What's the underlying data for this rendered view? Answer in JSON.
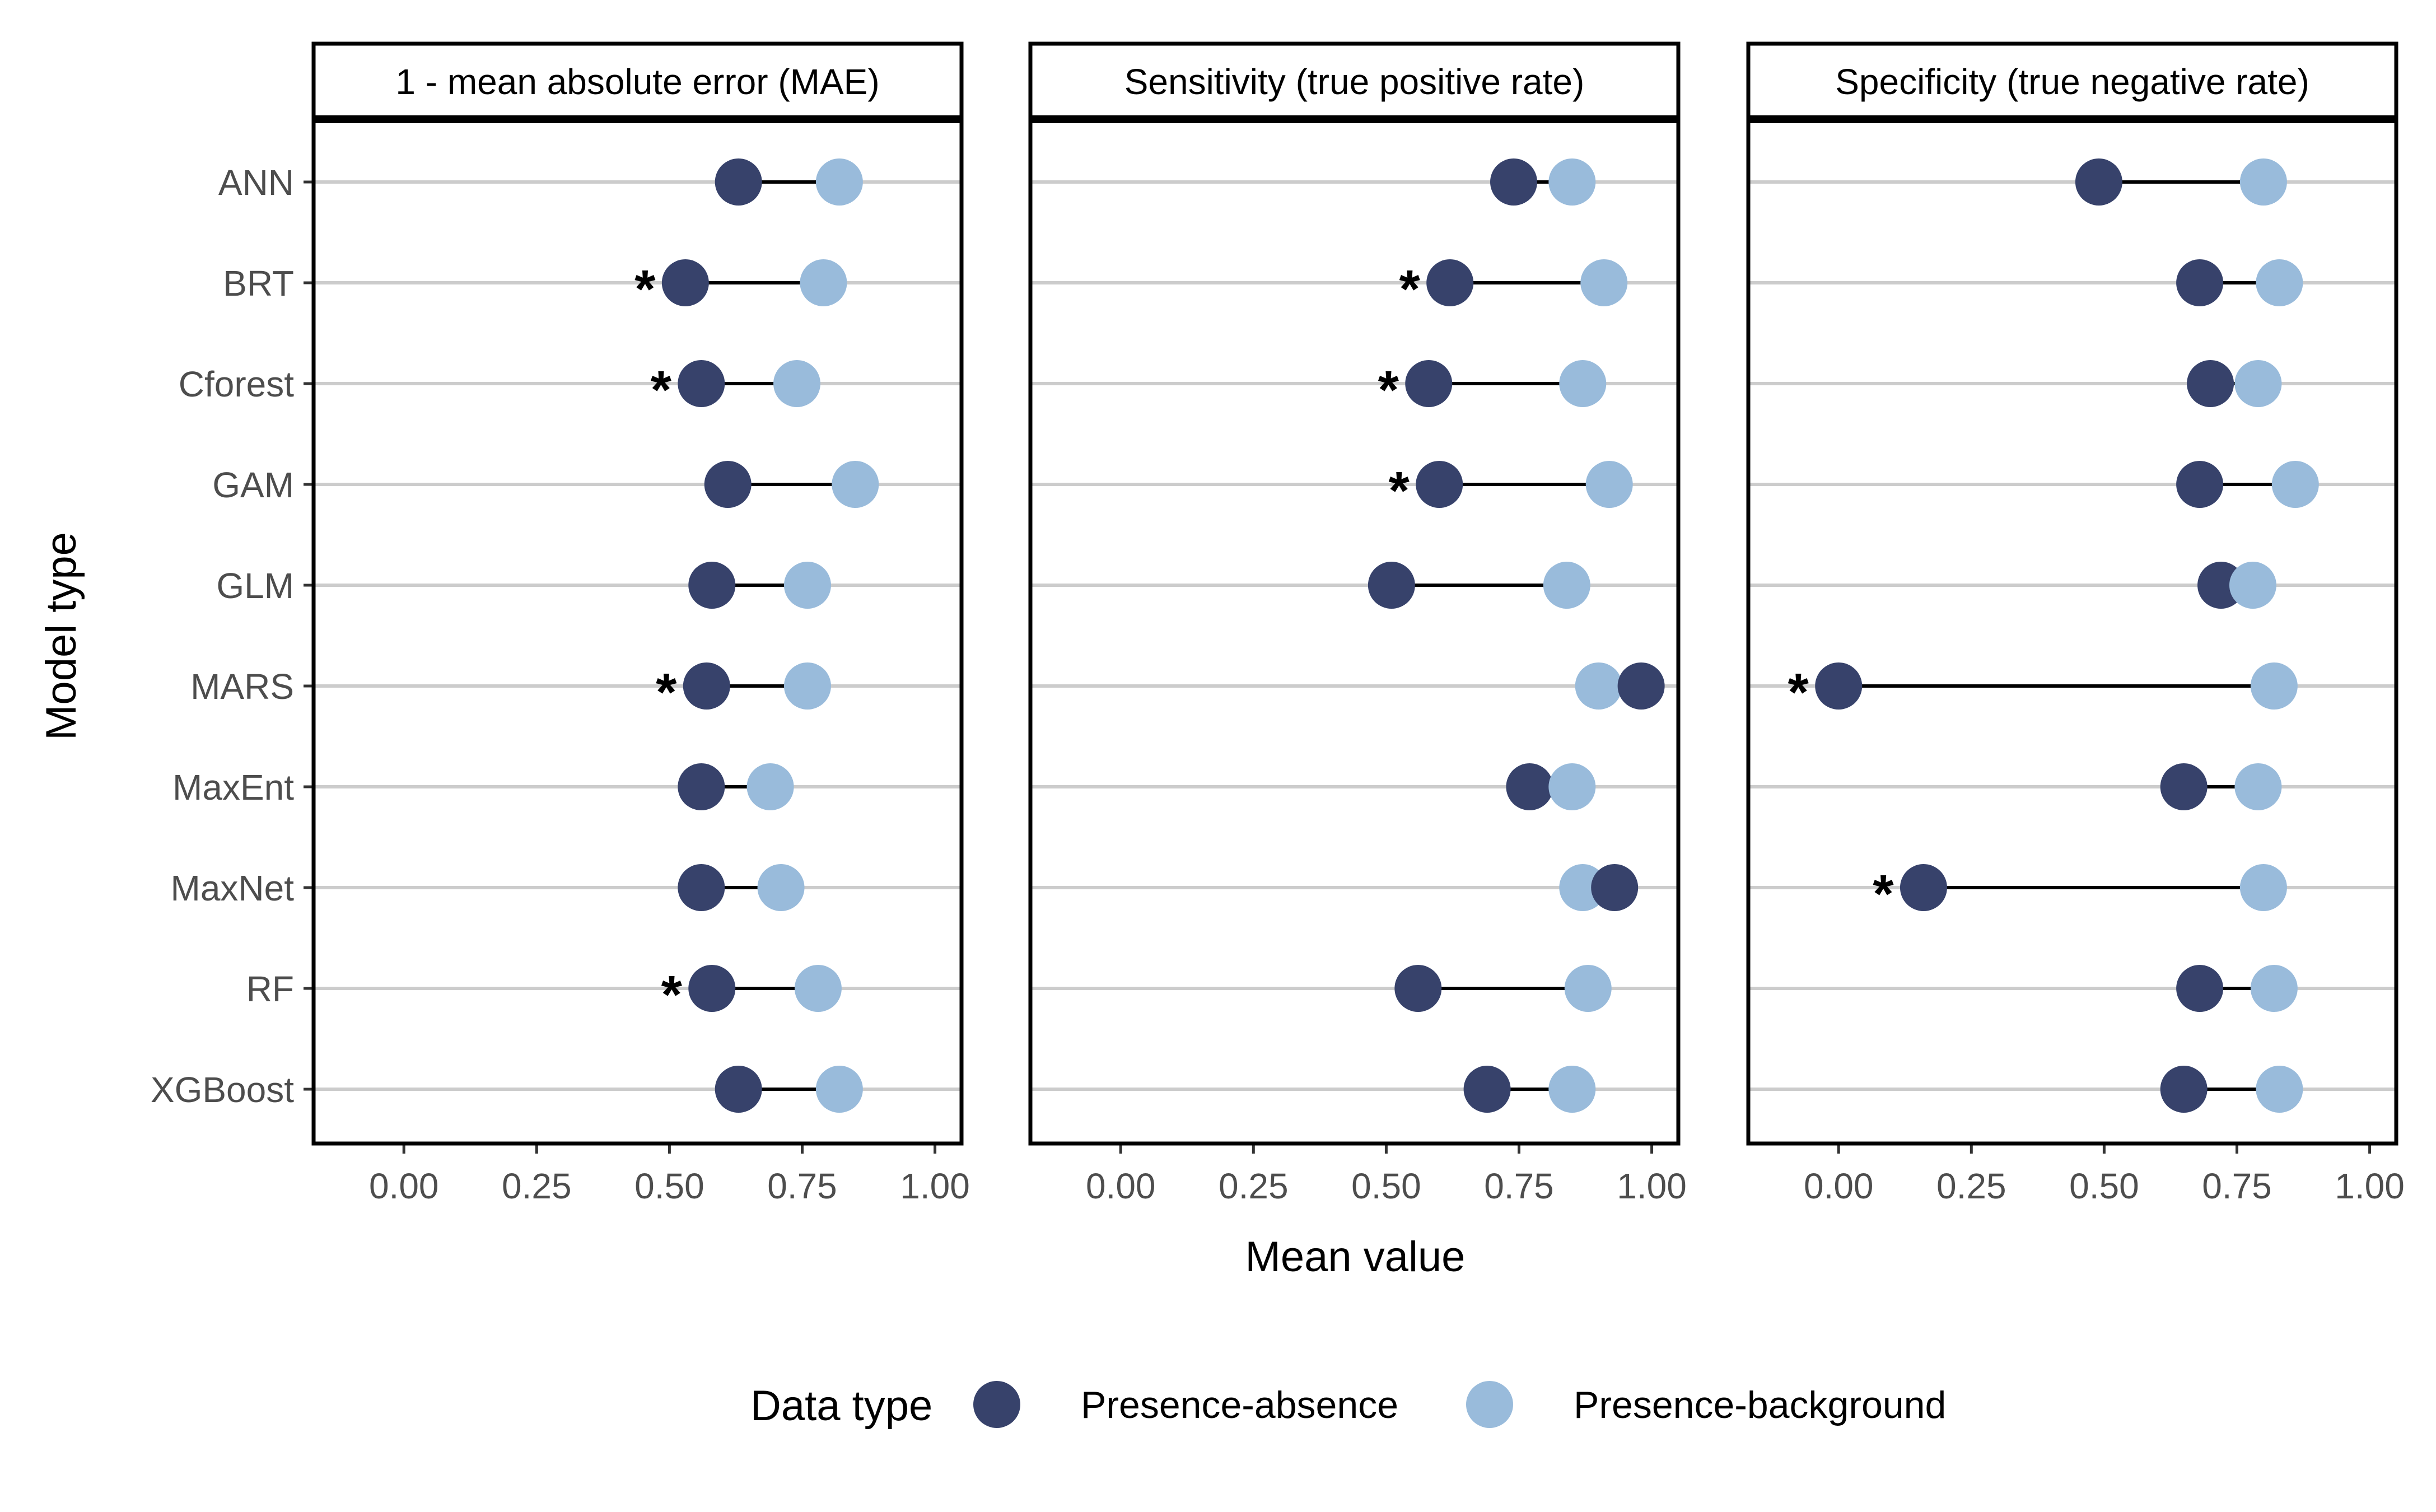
{
  "chart_data": {
    "type": "dot-plot",
    "xlabel": "Mean value",
    "ylabel": "Model type",
    "xlim": [
      -0.17,
      1.05
    ],
    "xticks": [
      0,
      0.25,
      0.5,
      0.75,
      1
    ],
    "xtick_labels": [
      "0.00",
      "0.25",
      "0.50",
      "0.75",
      "1.00"
    ],
    "categories": [
      "ANN",
      "BRT",
      "Cforest",
      "GAM",
      "GLM",
      "MARS",
      "MaxEnt",
      "MaxNet",
      "RF",
      "XGBoost"
    ],
    "grid": true,
    "legend": {
      "title": "Data type",
      "placement": "bottom",
      "entries": [
        {
          "name": "Presence-absence",
          "color": "#37426b"
        },
        {
          "name": "Presence-background",
          "color": "#99bbdb"
        }
      ]
    },
    "significance_marker": "*",
    "panels": [
      {
        "title": "1 - mean absolute error (MAE)",
        "series": [
          {
            "name": "Presence-absence",
            "values": [
              0.63,
              0.53,
              0.56,
              0.61,
              0.58,
              0.57,
              0.56,
              0.56,
              0.58,
              0.63
            ]
          },
          {
            "name": "Presence-background",
            "values": [
              0.82,
              0.79,
              0.74,
              0.85,
              0.76,
              0.76,
              0.69,
              0.71,
              0.78,
              0.82
            ]
          }
        ],
        "significant": [
          false,
          true,
          true,
          false,
          false,
          true,
          false,
          false,
          true,
          false
        ]
      },
      {
        "title": "Sensitivity (true positive rate)",
        "series": [
          {
            "name": "Presence-absence",
            "values": [
              0.74,
              0.62,
              0.58,
              0.6,
              0.51,
              0.98,
              0.77,
              0.93,
              0.56,
              0.69
            ]
          },
          {
            "name": "Presence-background",
            "values": [
              0.85,
              0.91,
              0.87,
              0.92,
              0.84,
              0.9,
              0.85,
              0.87,
              0.88,
              0.85
            ]
          }
        ],
        "significant": [
          false,
          true,
          true,
          true,
          false,
          false,
          false,
          false,
          false,
          false
        ]
      },
      {
        "title": "Specificity (true negative rate)",
        "series": [
          {
            "name": "Presence-absence",
            "values": [
              0.49,
              0.68,
              0.7,
              0.68,
              0.72,
              0.0,
              0.65,
              0.16,
              0.68,
              0.65
            ]
          },
          {
            "name": "Presence-background",
            "values": [
              0.8,
              0.83,
              0.79,
              0.86,
              0.78,
              0.82,
              0.79,
              0.8,
              0.82,
              0.83
            ]
          }
        ],
        "significant": [
          false,
          false,
          false,
          false,
          false,
          true,
          false,
          true,
          false,
          false
        ]
      }
    ]
  }
}
